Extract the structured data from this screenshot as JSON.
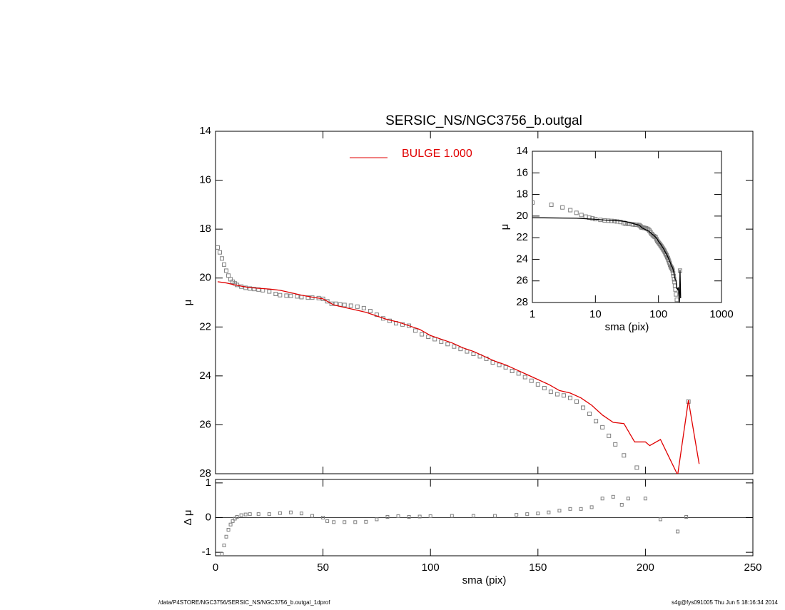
{
  "chart_data": [
    {
      "type": "line",
      "title": "SERSIC_NS/NGC3756_b.outgal",
      "ylabel": "μ",
      "xlim": [
        0,
        250
      ],
      "ylim": [
        28,
        14
      ],
      "xticks": [
        0,
        50,
        100,
        150,
        200,
        250
      ],
      "yticks": [
        14,
        16,
        18,
        20,
        22,
        24,
        26,
        28
      ],
      "legend": "top",
      "series": [
        {
          "marker": "square",
          "color": "#7f7f7f",
          "x": [
            1,
            2,
            3,
            4,
            5,
            6,
            7,
            8,
            9,
            10,
            12,
            14,
            16,
            18,
            20,
            22,
            25,
            28,
            30,
            33,
            35,
            38,
            40,
            43,
            45,
            48,
            50,
            52,
            54,
            56,
            58,
            60,
            63,
            66,
            69,
            72,
            75,
            78,
            81,
            84,
            87,
            90,
            93,
            96,
            99,
            102,
            105,
            108,
            111,
            114,
            117,
            120,
            123,
            126,
            129,
            132,
            135,
            138,
            141,
            144,
            147,
            150,
            153,
            156,
            159,
            162,
            165,
            168,
            171,
            174,
            177,
            180,
            183,
            186,
            190,
            196,
            220
          ],
          "values": [
            18.75,
            18.95,
            19.2,
            19.45,
            19.7,
            19.9,
            20.05,
            20.15,
            20.22,
            20.28,
            20.35,
            20.4,
            20.43,
            20.45,
            20.47,
            20.5,
            20.55,
            20.65,
            20.7,
            20.72,
            20.73,
            20.75,
            20.78,
            20.8,
            20.8,
            20.82,
            20.85,
            20.95,
            21.05,
            21.05,
            21.08,
            21.1,
            21.13,
            21.17,
            21.23,
            21.35,
            21.5,
            21.65,
            21.75,
            21.85,
            21.9,
            21.95,
            22.15,
            22.3,
            22.4,
            22.5,
            22.6,
            22.7,
            22.8,
            22.9,
            23.0,
            23.1,
            23.2,
            23.3,
            23.45,
            23.55,
            23.65,
            23.8,
            23.9,
            24.05,
            24.2,
            24.35,
            24.5,
            24.65,
            24.75,
            24.8,
            24.9,
            25.05,
            25.3,
            25.55,
            25.85,
            26.1,
            26.45,
            26.8,
            27.25,
            27.75,
            25.05
          ]
        },
        {
          "name": "BULGE  1.000",
          "color": "#e00000",
          "x": [
            1,
            5,
            10,
            15,
            20,
            25,
            30,
            35,
            40,
            45,
            50,
            55,
            60,
            65,
            70,
            75,
            80,
            85,
            90,
            95,
            100,
            105,
            110,
            115,
            120,
            125,
            130,
            135,
            140,
            145,
            150,
            155,
            160,
            165,
            170,
            175,
            180,
            185,
            190,
            193,
            195,
            200,
            202,
            207,
            215,
            220,
            225
          ],
          "values": [
            20.15,
            20.2,
            20.3,
            20.38,
            20.42,
            20.45,
            20.5,
            20.6,
            20.7,
            20.78,
            20.85,
            21.1,
            21.2,
            21.3,
            21.4,
            21.55,
            21.7,
            21.8,
            21.95,
            22.1,
            22.35,
            22.5,
            22.65,
            22.85,
            23.0,
            23.2,
            23.4,
            23.55,
            23.75,
            23.95,
            24.15,
            24.35,
            24.6,
            24.7,
            24.9,
            25.2,
            25.6,
            25.9,
            25.95,
            26.4,
            26.7,
            26.7,
            26.85,
            26.6,
            28.05,
            25.0,
            27.6
          ]
        }
      ]
    },
    {
      "type": "scatter",
      "xlabel": "sma (pix)",
      "ylabel": "Δ μ",
      "color": "#7f7f7f",
      "xlim": [
        0,
        250
      ],
      "ylim": [
        -1.1,
        1.1
      ],
      "xticks": [
        0,
        50,
        100,
        150,
        200,
        250
      ],
      "yticks": [
        -1,
        0,
        1
      ],
      "x": [
        3,
        4,
        5,
        6,
        7,
        8,
        9,
        10,
        12,
        14,
        16,
        20,
        25,
        30,
        35,
        40,
        45,
        50,
        52,
        55,
        60,
        65,
        70,
        75,
        80,
        85,
        90,
        95,
        100,
        110,
        120,
        130,
        140,
        145,
        150,
        155,
        160,
        165,
        170,
        175,
        180,
        185,
        189,
        192,
        200,
        207,
        215,
        219
      ],
      "values": [
        -1.05,
        -0.8,
        -0.55,
        -0.35,
        -0.2,
        -0.1,
        -0.03,
        0.02,
        0.07,
        0.09,
        0.1,
        0.1,
        0.1,
        0.13,
        0.15,
        0.12,
        0.05,
        0,
        -0.1,
        -0.13,
        -0.13,
        -0.13,
        -0.12,
        -0.05,
        0.02,
        0.04,
        0.02,
        0.03,
        0.04,
        0.05,
        0.05,
        0.05,
        0.08,
        0.1,
        0.12,
        0.15,
        0.2,
        0.25,
        0.25,
        0.3,
        0.55,
        0.6,
        0.37,
        0.55,
        0.55,
        -0.05,
        -0.4,
        0.02
      ]
    },
    {
      "type": "inset",
      "xlabel": "sma (pix)",
      "ylabel": "μ",
      "log_x": true,
      "line_color": "#000000",
      "xlim": [
        1,
        1000
      ],
      "ylim": [
        28,
        14
      ],
      "xticks": [
        1,
        10,
        100,
        1000
      ],
      "yticks": [
        14,
        16,
        18,
        20,
        22,
        24,
        26,
        28
      ]
    }
  ],
  "footer": {
    "left": "/data/P4STORE/NGC3756/SERSIC_NS/NGC3756_b.outgal_1dprof",
    "right": "s4g@fys091005  Thu Jun  5 18:16:34 2014"
  }
}
